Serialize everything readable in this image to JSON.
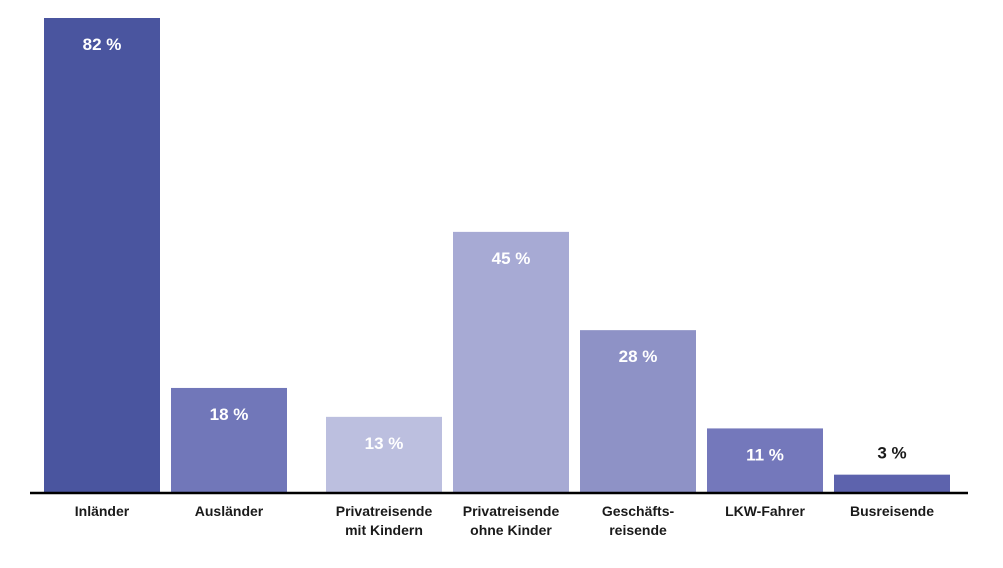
{
  "chart_data": {
    "type": "bar",
    "title": "",
    "xlabel": "",
    "ylabel": "",
    "ylim": [
      0,
      82
    ],
    "grid": false,
    "legend": "none",
    "unit": "%",
    "categories": [
      [
        "Inländer"
      ],
      [
        "Ausländer"
      ],
      [
        "Privatreisende",
        "mit Kindern"
      ],
      [
        "Privatreisende",
        "ohne Kinder"
      ],
      [
        "Geschäfts-",
        "reisende"
      ],
      [
        "LKW-Fahrer"
      ],
      [
        "Busreisende"
      ]
    ],
    "values": [
      82,
      18,
      13,
      45,
      28,
      11,
      3
    ],
    "value_labels": [
      "82 %",
      "18 %",
      "13 %",
      "45 %",
      "28 %",
      "11 %",
      "3 %"
    ],
    "colors": [
      "#4a559f",
      "#7177b9",
      "#bcbfdf",
      "#a7aad4",
      "#8e92c6",
      "#7478bb",
      "#5d63ad"
    ],
    "label_colors": [
      "#ffffff",
      "#ffffff",
      "#ffffff",
      "#ffffff",
      "#ffffff",
      "#ffffff",
      "#1a1a1a"
    ],
    "label_position": [
      "inside",
      "inside",
      "inside",
      "inside",
      "inside",
      "inside",
      "above"
    ],
    "axis_color": "#000000"
  }
}
